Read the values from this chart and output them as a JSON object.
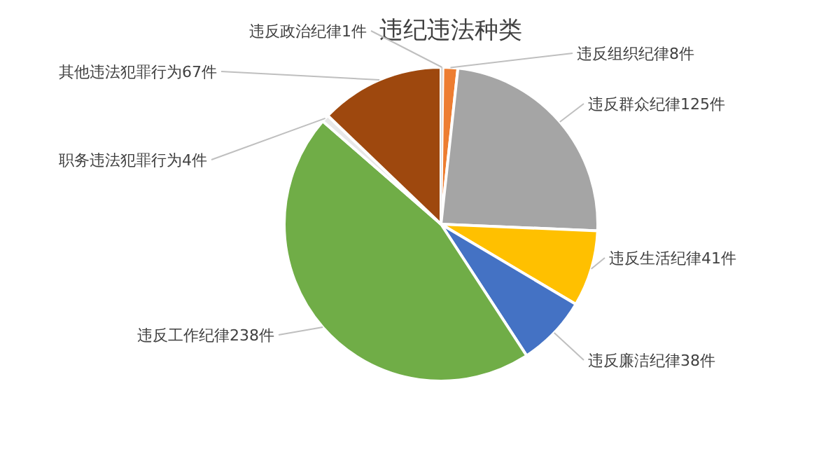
{
  "chart_data": {
    "type": "pie",
    "title": "违纪违法种类",
    "categories": [
      "违反政治纪律1件",
      "违反组织纪律8件",
      "违反群众纪律125件",
      "违反生活纪律41件",
      "违反廉洁纪律38件",
      "违反工作纪律238件",
      "职务违法犯罪行为4件",
      "其他违法犯罪行为67件"
    ],
    "values": [
      1,
      8,
      125,
      41,
      38,
      238,
      4,
      67
    ],
    "colors": [
      "#d9d9d9",
      "#ed7d31",
      "#a5a5a5",
      "#ffc000",
      "#4472c4",
      "#70ad47",
      "#e8e8e8",
      "#9e480e"
    ],
    "legend": false
  }
}
